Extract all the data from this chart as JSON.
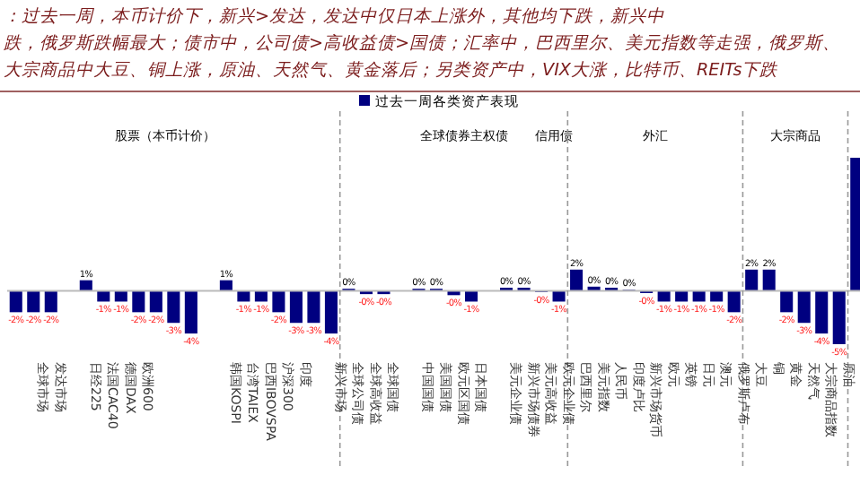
{
  "chart_data": {
    "type": "bar",
    "categories": [
      null,
      "全球市场",
      "发达市场",
      null,
      "日经225",
      "法国CAC40",
      "德国DAX",
      "欧洲600",
      null,
      null,
      null,
      null,
      "韩国KOSPI",
      "台湾TAIEX",
      "巴西IBOVSPA",
      "沪深300",
      "印度",
      null,
      "新兴市场",
      "全球公司债",
      "全球高收益",
      "全球国债",
      null,
      "中国国债",
      "美国国债",
      "欧元区国债",
      "日本国债",
      null,
      "美元企业债",
      "新兴市场债券",
      "美元高收益",
      "欧元企业债",
      "巴西里尔",
      "美元指数",
      "人民币",
      "印度卢比",
      "新兴市场货币",
      "欧元",
      "英镑",
      "日元",
      "澳元",
      "俄罗斯卢布",
      "大豆",
      "铜",
      "黄金",
      "天然气",
      "大宗商品指数",
      "原油",
      null
    ],
    "series": [
      {
        "name": "过去一周各类资产表现",
        "color": "#000080",
        "values": [
          -2,
          -2,
          -2,
          null,
          1,
          -1,
          -1,
          -2,
          -2,
          -3,
          -4,
          null,
          1,
          -1,
          -1,
          -2,
          -3,
          -3,
          -4,
          0.2,
          -0.3,
          -0.3,
          null,
          0.2,
          0.2,
          -0.4,
          -1,
          null,
          0.3,
          0.3,
          -0.1,
          -1,
          2,
          0.4,
          0.3,
          0.1,
          -0.2,
          -1,
          -1,
          -1,
          -1,
          -2,
          2,
          2,
          -2,
          -3,
          -4,
          -5,
          12.5
        ],
        "value_labels": [
          "-2%",
          "-2%",
          "-2%",
          null,
          "1%",
          "-1%",
          "-1%",
          "-2%",
          "-2%",
          "-3%",
          "-4%",
          null,
          "1%",
          "-1%",
          "-1%",
          "-2%",
          "-3%",
          "-3%",
          "-4%",
          "0%",
          "-0%",
          "-0%",
          null,
          "0%",
          "0%",
          "-0%",
          "-1%",
          null,
          "0%",
          "0%",
          "-0%",
          "-1%",
          "2%",
          "0%",
          "0%",
          "0%",
          "-0%",
          "-1%",
          "-1%",
          "-1%",
          "-1%",
          "-2%",
          "2%",
          "2%",
          "-2%",
          "-3%",
          "-4%",
          "-5%",
          null
        ]
      }
    ],
    "legend": "top",
    "grid": "x",
    "annotations": [
      "：过去一周，本币计价下，新兴>发达，发达中仅日本上涨外，其他均下跌，新兴中",
      "跌，俄罗斯跌幅最大；债市中，公司债>高收益债>国债；汇率中，巴西里尔、美元指数等走强，俄罗斯、",
      "大宗商品中大豆、铜上涨，原油、天然气、黄金落后；另类资产中，VIX大涨，比特币、REITs下跌",
      "股票（本币计价）",
      "全球债券",
      "主权债",
      "信用债",
      "外汇",
      "大宗商品"
    ]
  }
}
